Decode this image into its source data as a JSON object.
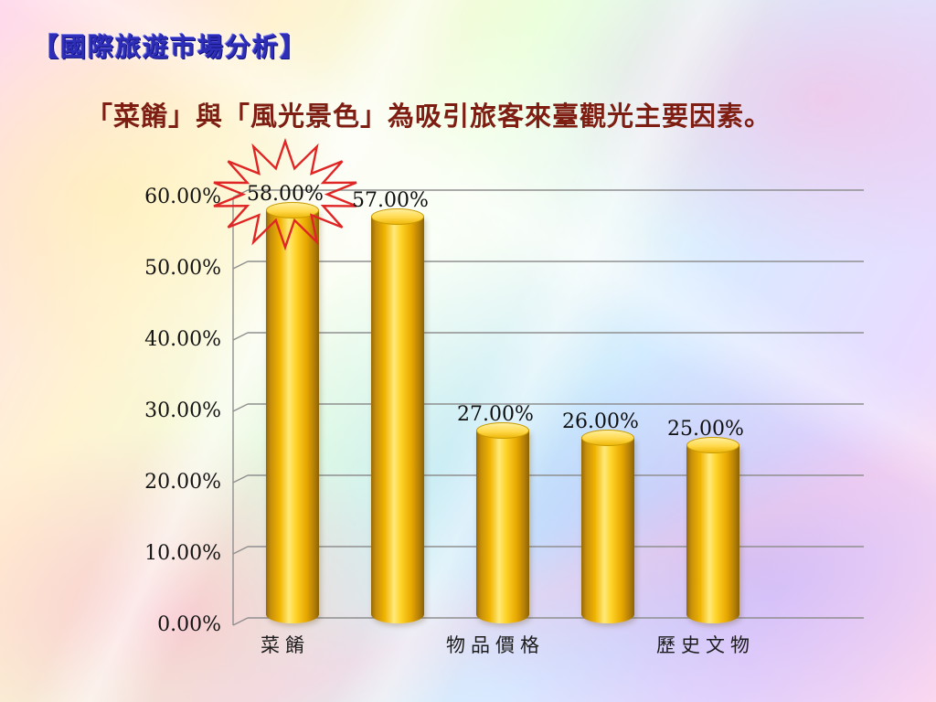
{
  "slide": {
    "title": "【國際旅遊市場分析】",
    "subtitle": "「菜餚」與「風光景色」為吸引旅客來臺觀光主要因素。"
  },
  "chart_data": {
    "type": "bar",
    "subtype": "3d-cylinder",
    "categories": [
      "菜餚",
      "",
      "物品價格",
      "",
      "歷史文物"
    ],
    "values": [
      58,
      57,
      27,
      26,
      25
    ],
    "value_labels": [
      "58.00%",
      "57.00%",
      "27.00%",
      "26.00%",
      "25.00%"
    ],
    "x_axis_visible_labels": [
      "菜餚",
      "物品價格",
      "歷史文物"
    ],
    "y_ticks": [
      0,
      10,
      20,
      30,
      40,
      50,
      60
    ],
    "y_tick_labels": [
      "0.00%",
      "10.00%",
      "20.00%",
      "30.00%",
      "40.00%",
      "50.00%",
      "60.00%"
    ],
    "ylim": [
      0,
      60
    ],
    "grid": "horizontal",
    "legend": "none",
    "title": "",
    "xlabel": "",
    "ylabel": "",
    "annotations": [
      {
        "type": "starburst",
        "on_value_index": 0,
        "on_value_label": "58.00%",
        "color": "#E02525"
      }
    ]
  },
  "colors": {
    "bar_gold": "#F5C400",
    "title_blue": "#2D2DB8",
    "subtitle_maroon": "#7E1D12",
    "axis_gray": "#8F8F8F",
    "starburst_red": "#E02525"
  }
}
